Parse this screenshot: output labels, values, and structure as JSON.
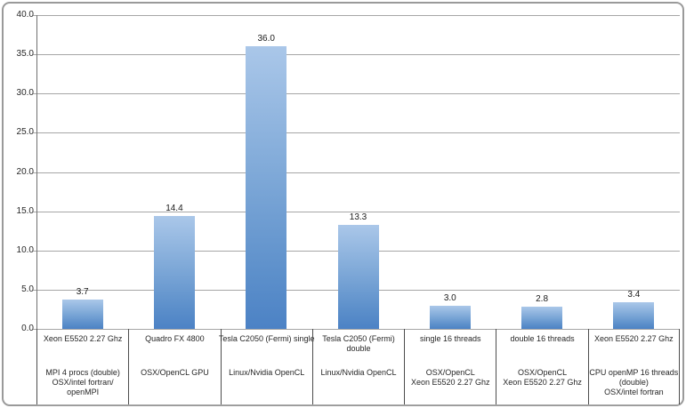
{
  "chart_data": {
    "type": "bar",
    "title": "",
    "xlabel": "",
    "ylabel": "",
    "ylim": [
      0,
      40
    ],
    "ytick_step": 5,
    "yticks": [
      "0.0",
      "5.0",
      "10.0",
      "15.0",
      "20.0",
      "25.0",
      "30.0",
      "35.0",
      "40.0"
    ],
    "grid": true,
    "legend": false,
    "values": [
      3.7,
      14.4,
      36.0,
      13.3,
      3.0,
      2.8,
      3.4
    ],
    "value_labels": [
      "3.7",
      "14.4",
      "36.0",
      "13.3",
      "3.0",
      "2.8",
      "3.4"
    ],
    "categories": [
      {
        "top": [
          "Xeon E5520 2.27 Ghz"
        ],
        "bottom": [
          "MPI 4 procs (double)",
          "OSX/intel fortran/",
          "openMPI"
        ]
      },
      {
        "top": [
          "Quadro FX 4800"
        ],
        "bottom": [
          "OSX/OpenCL GPU"
        ]
      },
      {
        "top": [
          "Tesla C2050 (Fermi) single"
        ],
        "bottom": [
          "Linux/Nvidia OpenCL"
        ]
      },
      {
        "top": [
          "Tesla C2050 (Fermi)",
          "double"
        ],
        "bottom": [
          "Linux/Nvidia OpenCL"
        ]
      },
      {
        "top": [
          "single 16 threads"
        ],
        "bottom": [
          "OSX/OpenCL",
          "Xeon E5520 2.27 Ghz"
        ]
      },
      {
        "top": [
          "double 16 threads"
        ],
        "bottom": [
          "OSX/OpenCL",
          "Xeon E5520 2.27 Ghz"
        ]
      },
      {
        "top": [
          "Xeon E5520 2.27 Ghz"
        ],
        "bottom": [
          "CPU openMP 16 threads",
          "(double)",
          "OSX/intel fortran"
        ]
      }
    ],
    "colors": {
      "bar_gradient_top": "#aac7e9",
      "bar_gradient_bottom": "#4c82c5",
      "gridline": "#a6a6a6",
      "y_axis_line": "#707070",
      "category_separator": "#4d4d4d",
      "label_area_bottom_line": "#a6a6a6",
      "outer_border": "#9a9a9a",
      "text": "#262626",
      "background": "#ffffff"
    }
  }
}
